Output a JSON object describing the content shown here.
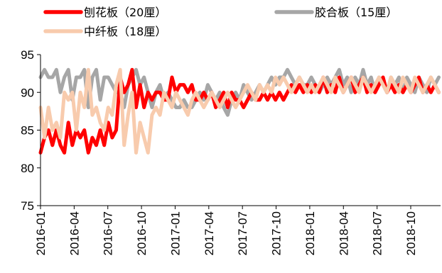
{
  "chart_data": {
    "type": "line",
    "title": "",
    "xlabel": "",
    "ylabel": "",
    "ylim": [
      75,
      95
    ],
    "yticks": [
      75,
      80,
      85,
      90,
      95
    ],
    "xtick_labels": [
      "2016-01",
      "2016-04",
      "2016-07",
      "2016-10",
      "2017-01",
      "2017-04",
      "2017-07",
      "2017-10",
      "2018-01",
      "2018-04",
      "2018-07",
      "2018-10"
    ],
    "x_start": "2016-01",
    "grid": false,
    "legend": "top",
    "series": [
      {
        "name": "刨花板（20厘）",
        "color": "#ff0000",
        "values": [
          82,
          84,
          85,
          83,
          85,
          83,
          82,
          86,
          83,
          85,
          84,
          85,
          82,
          84,
          83,
          85,
          83,
          86,
          84,
          85,
          92,
          90,
          91,
          93,
          88,
          91,
          88,
          90,
          89,
          90,
          90,
          89,
          89,
          92,
          90,
          91,
          91,
          90,
          91,
          89,
          89,
          90,
          89,
          90,
          88,
          89,
          90,
          88,
          90,
          89,
          89,
          88,
          89,
          90,
          89,
          89,
          90,
          89,
          90,
          89,
          90,
          89,
          90,
          91,
          90,
          91,
          90,
          91,
          90,
          91,
          90,
          92,
          90,
          91,
          90,
          92,
          90,
          91,
          92,
          90,
          91,
          92,
          90,
          91,
          90,
          91,
          92,
          90,
          91,
          90,
          91,
          90,
          91,
          90,
          91,
          92,
          90,
          91,
          90,
          91,
          90
        ]
      },
      {
        "name": "胶合板（15厘）",
        "color": "#a6a6a6",
        "values": [
          92,
          93,
          92,
          92,
          93,
          90,
          92,
          93,
          89,
          92,
          92,
          93,
          88,
          92,
          93,
          89,
          92,
          92,
          91,
          90,
          90,
          88,
          91,
          92,
          93,
          91,
          92,
          90,
          88,
          90,
          91,
          89,
          90,
          89,
          88,
          88,
          89,
          88,
          88,
          89,
          90,
          89,
          91,
          90,
          89,
          90,
          88,
          87,
          89,
          90,
          89,
          91,
          90,
          89,
          90,
          91,
          90,
          91,
          92,
          91,
          92,
          92,
          93,
          92,
          91,
          92,
          91,
          91,
          92,
          91,
          90,
          91,
          92,
          91,
          92,
          93,
          91,
          92,
          90,
          92,
          91,
          93,
          91,
          92,
          90,
          92,
          91,
          90,
          92,
          91,
          92,
          90,
          92,
          91,
          90,
          92,
          91,
          90,
          92,
          91,
          92
        ]
      },
      {
        "name": "中纤板（18厘）",
        "color": "#f8cbad",
        "values": [
          88,
          84,
          88,
          85,
          86,
          84,
          90,
          89,
          90,
          85,
          90,
          88,
          93,
          87,
          88,
          86,
          85,
          88,
          87,
          91,
          93,
          83,
          87,
          90,
          82,
          86,
          84,
          82,
          87,
          88,
          87,
          90,
          89,
          88,
          90,
          89,
          88,
          87,
          89,
          90,
          89,
          88,
          89,
          90,
          89,
          88,
          89,
          90,
          89,
          88,
          89,
          90,
          91,
          90,
          89,
          91,
          90,
          91,
          90,
          92,
          91,
          92,
          91,
          90,
          91,
          92,
          91,
          90,
          91,
          90,
          91,
          92,
          91,
          90,
          92,
          91,
          90,
          91,
          92,
          91,
          90,
          92,
          91,
          90,
          91,
          92,
          91,
          90,
          92,
          91,
          90,
          92,
          91,
          90,
          92,
          91,
          90,
          91,
          92,
          91,
          90
        ]
      }
    ]
  }
}
